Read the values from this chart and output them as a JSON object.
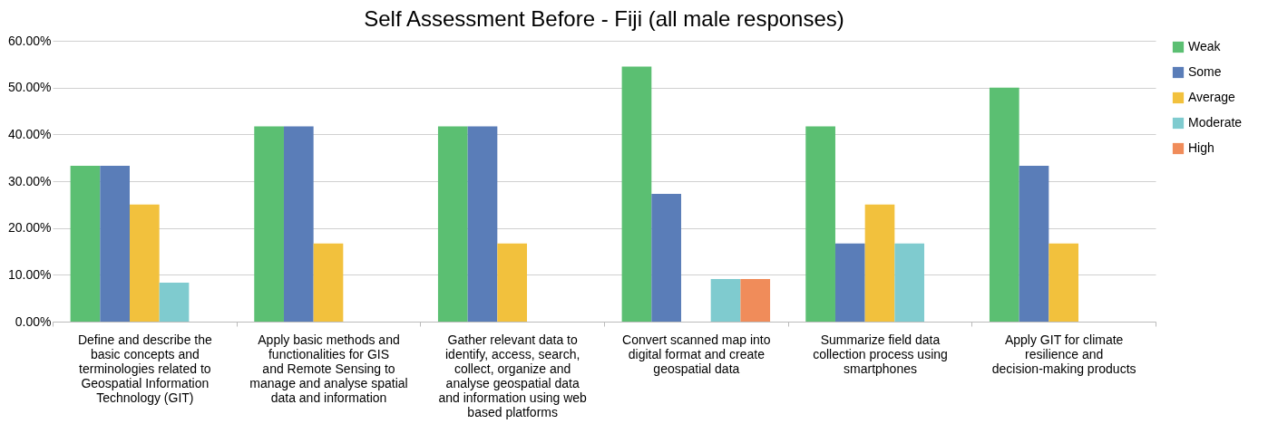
{
  "chart_data": {
    "type": "bar",
    "title": "Self Assessment Before - Fiji (all male responses)",
    "categories": [
      "Define and describe the basic concepts and terminologies related to Geospatial Information Technology (GIT)",
      "Apply basic methods and functionalities for GIS and Remote Sensing to manage and analyse spatial data and information",
      "Gather relevant data to identify, access, search, collect, organize and analyse geospatial data and information using web based platforms",
      "Convert scanned map into digital format and create geospatial data",
      "Summarize field data collection process using smartphones",
      "Apply GIT for climate resilience and decision-making products"
    ],
    "series": [
      {
        "name": "Weak",
        "color": "#5bbf72",
        "values": [
          33.3,
          41.7,
          41.7,
          54.5,
          41.7,
          50
        ]
      },
      {
        "name": "Some",
        "color": "#5a7db8",
        "values": [
          33.3,
          41.7,
          41.7,
          27.3,
          16.7,
          33.3
        ]
      },
      {
        "name": "Average",
        "color": "#f2c13d",
        "values": [
          25,
          16.7,
          16.7,
          0,
          25,
          16.7
        ]
      },
      {
        "name": "Moderate",
        "color": "#7fcbcf",
        "values": [
          8.3,
          0,
          0,
          9.1,
          16.7,
          0
        ]
      },
      {
        "name": "High",
        "color": "#f08c5a",
        "values": [
          0,
          0,
          0,
          9.1,
          0,
          0
        ]
      }
    ],
    "ylim": [
      0,
      60
    ],
    "yticks": [
      {
        "value": 0,
        "label": "0.00%"
      },
      {
        "value": 10,
        "label": "10.00%"
      },
      {
        "value": 20,
        "label": "20.00%"
      },
      {
        "value": 30,
        "label": "30.00%"
      },
      {
        "value": 40,
        "label": "40.00%"
      },
      {
        "value": 50,
        "label": "50.00%"
      },
      {
        "value": 60,
        "label": "60.00%"
      }
    ],
    "grid": "y",
    "legend": "right"
  }
}
